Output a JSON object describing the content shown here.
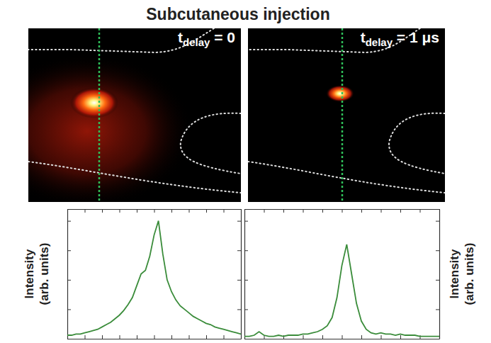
{
  "title": "Subcutaneous injection",
  "images": [
    {
      "label_main": "t",
      "label_sub": "delay",
      "label_rest": " = 0"
    },
    {
      "label_main": "t",
      "label_sub": "delay",
      "label_rest": " = 1 μs"
    }
  ],
  "chart_data": [
    {
      "type": "line",
      "x": [
        0,
        2.5,
        5,
        7.5,
        10,
        12.5,
        15,
        17.5,
        20,
        22.5,
        25,
        27.5,
        30,
        32.5,
        35,
        37.5,
        40,
        42.5,
        45,
        47.5,
        50,
        52.5,
        55,
        57.5,
        60,
        62.5,
        65,
        67.5,
        70,
        72.5,
        75,
        77.5,
        80,
        82.5,
        85,
        87.5,
        90,
        92.5,
        95,
        97.5,
        100
      ],
      "series": [
        {
          "color": "#3a8c3a",
          "values": [
            0.03,
            0.03,
            0.04,
            0.04,
            0.05,
            0.06,
            0.07,
            0.08,
            0.1,
            0.12,
            0.14,
            0.17,
            0.2,
            0.24,
            0.29,
            0.35,
            0.45,
            0.55,
            0.58,
            0.7,
            0.88,
            1.0,
            0.72,
            0.5,
            0.4,
            0.33,
            0.28,
            0.25,
            0.22,
            0.19,
            0.17,
            0.15,
            0.13,
            0.12,
            0.1,
            0.09,
            0.08,
            0.07,
            0.06,
            0.05,
            0.04
          ]
        }
      ],
      "xlim": [
        0,
        100
      ],
      "ylim": [
        0,
        1.1
      ],
      "xticks": [
        0,
        10,
        20,
        30,
        40,
        50,
        60,
        70,
        80,
        90,
        100
      ],
      "yticks": [
        0,
        0.25,
        0.5,
        0.75,
        1
      ],
      "tick_labels": false,
      "y_label": "Intensity (arb. units)"
    },
    {
      "type": "line",
      "x": [
        0,
        2.5,
        5,
        7.5,
        10,
        12.5,
        15,
        17.5,
        20,
        22.5,
        25,
        27.5,
        30,
        32.5,
        35,
        37.5,
        40,
        42.5,
        45,
        47.5,
        50,
        52.5,
        55,
        57.5,
        60,
        62.5,
        65,
        67.5,
        70,
        72.5,
        75,
        77.5,
        80,
        82.5,
        85,
        87.5,
        90,
        92.5,
        95,
        97.5,
        100
      ],
      "series": [
        {
          "color": "#3a8c3a",
          "values": [
            0.02,
            0.02,
            0.03,
            0.06,
            0.03,
            0.02,
            0.02,
            0.03,
            0.02,
            0.03,
            0.03,
            0.03,
            0.04,
            0.04,
            0.05,
            0.06,
            0.08,
            0.11,
            0.18,
            0.35,
            0.62,
            0.8,
            0.55,
            0.3,
            0.15,
            0.08,
            0.05,
            0.04,
            0.05,
            0.04,
            0.04,
            0.03,
            0.04,
            0.03,
            0.03,
            0.03,
            0.02,
            0.02,
            0.02,
            0.02,
            0.02
          ]
        }
      ],
      "xlim": [
        0,
        100
      ],
      "ylim": [
        0,
        1.1
      ],
      "xticks": [
        0,
        10,
        20,
        30,
        40,
        50,
        60,
        70,
        80,
        90,
        100
      ],
      "yticks": [
        0,
        0.25,
        0.5,
        0.75,
        1
      ],
      "tick_labels": false,
      "y_label": "Intensity (arb. units)"
    }
  ]
}
